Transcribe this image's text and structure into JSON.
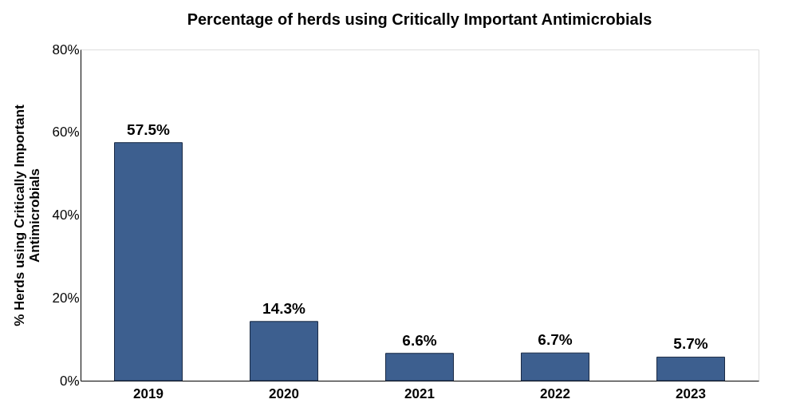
{
  "chart_data": {
    "type": "bar",
    "title": "Percentage of herds using Critically Important Antimicrobials",
    "ylabel": "% Herds using Critically Important Antimicrobials",
    "categories": [
      "2019",
      "2020",
      "2021",
      "2022",
      "2023"
    ],
    "values": [
      57.5,
      14.3,
      6.6,
      6.7,
      5.7
    ],
    "value_labels": [
      "57.5%",
      "14.3%",
      "6.6%",
      "6.7%",
      "5.7%"
    ],
    "color": "#3d5f8f",
    "ylim": [
      0,
      80
    ],
    "yticks": [
      {
        "value": 0,
        "label": "0%"
      },
      {
        "value": 20,
        "label": "20%"
      },
      {
        "value": 40,
        "label": "40%"
      },
      {
        "value": 60,
        "label": "60%"
      },
      {
        "value": 80,
        "label": "80%"
      }
    ],
    "grid": false
  }
}
